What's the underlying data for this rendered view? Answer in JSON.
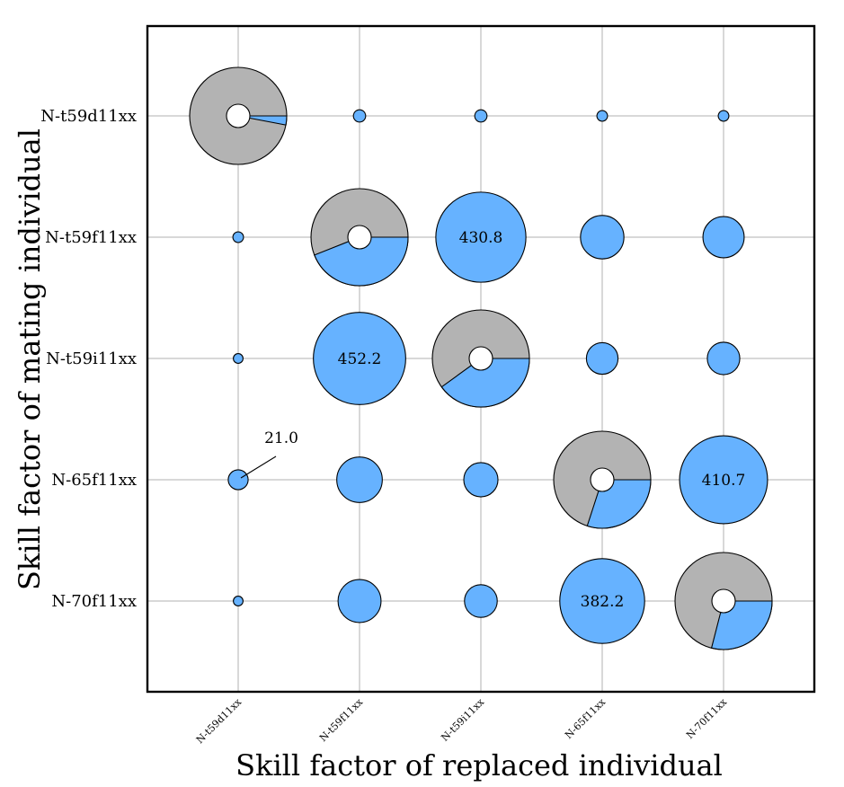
{
  "chart_data": {
    "type": "bubble-pie-matrix",
    "xlabel": "Skill factor of replaced individual",
    "ylabel": "Skill factor of mating individual",
    "x_categories": [
      "N-t59d11xx",
      "N-t59f11xx",
      "N-t59i11xx",
      "N-65f11xx",
      "N-70f11xx"
    ],
    "y_categories": [
      "N-t59d11xx",
      "N-t59f11xx",
      "N-t59i11xx",
      "N-65f11xx",
      "N-70f11xx"
    ],
    "colors": {
      "gray": "#b3b3b3",
      "blue": "#66b2ff",
      "hole": "#ffffff",
      "edge": "#000000",
      "grid": "#b0b0b0"
    },
    "cells": [
      {
        "x": "N-t59d11xx",
        "y": "N-t59d11xx",
        "value": 500,
        "pie_blue_fraction": 0.03
      },
      {
        "x": "N-t59f11xx",
        "y": "N-t59d11xx",
        "value": 8
      },
      {
        "x": "N-t59i11xx",
        "y": "N-t59d11xx",
        "value": 8
      },
      {
        "x": "N-65f11xx",
        "y": "N-t59d11xx",
        "value": 6
      },
      {
        "x": "N-70f11xx",
        "y": "N-t59d11xx",
        "value": 6
      },
      {
        "x": "N-t59d11xx",
        "y": "N-t59f11xx",
        "value": 6
      },
      {
        "x": "N-t59f11xx",
        "y": "N-t59f11xx",
        "value": 500,
        "pie_blue_fraction": 0.44
      },
      {
        "x": "N-t59i11xx",
        "y": "N-t59f11xx",
        "value": 430.8,
        "label": "430.8"
      },
      {
        "x": "N-65f11xx",
        "y": "N-t59f11xx",
        "value": 100
      },
      {
        "x": "N-70f11xx",
        "y": "N-t59f11xx",
        "value": 90
      },
      {
        "x": "N-t59d11xx",
        "y": "N-t59i11xx",
        "value": 5
      },
      {
        "x": "N-t59f11xx",
        "y": "N-t59i11xx",
        "value": 452.2,
        "label": "452.2"
      },
      {
        "x": "N-t59i11xx",
        "y": "N-t59i11xx",
        "value": 500,
        "pie_blue_fraction": 0.4
      },
      {
        "x": "N-65f11xx",
        "y": "N-t59i11xx",
        "value": 53
      },
      {
        "x": "N-70f11xx",
        "y": "N-t59i11xx",
        "value": 56
      },
      {
        "x": "N-t59d11xx",
        "y": "N-65f11xx",
        "value": 21.0,
        "label": "21.0",
        "callout": true
      },
      {
        "x": "N-t59f11xx",
        "y": "N-65f11xx",
        "value": 110
      },
      {
        "x": "N-t59i11xx",
        "y": "N-65f11xx",
        "value": 62
      },
      {
        "x": "N-65f11xx",
        "y": "N-65f11xx",
        "value": 500,
        "pie_blue_fraction": 0.3
      },
      {
        "x": "N-70f11xx",
        "y": "N-65f11xx",
        "value": 410.7,
        "label": "410.7"
      },
      {
        "x": "N-t59d11xx",
        "y": "N-70f11xx",
        "value": 5
      },
      {
        "x": "N-t59f11xx",
        "y": "N-70f11xx",
        "value": 98
      },
      {
        "x": "N-t59i11xx",
        "y": "N-70f11xx",
        "value": 57
      },
      {
        "x": "N-65f11xx",
        "y": "N-70f11xx",
        "value": 382.2,
        "label": "382.2"
      },
      {
        "x": "N-70f11xx",
        "y": "N-70f11xx",
        "value": 500,
        "pie_blue_fraction": 0.29
      }
    ],
    "grid": true
  }
}
